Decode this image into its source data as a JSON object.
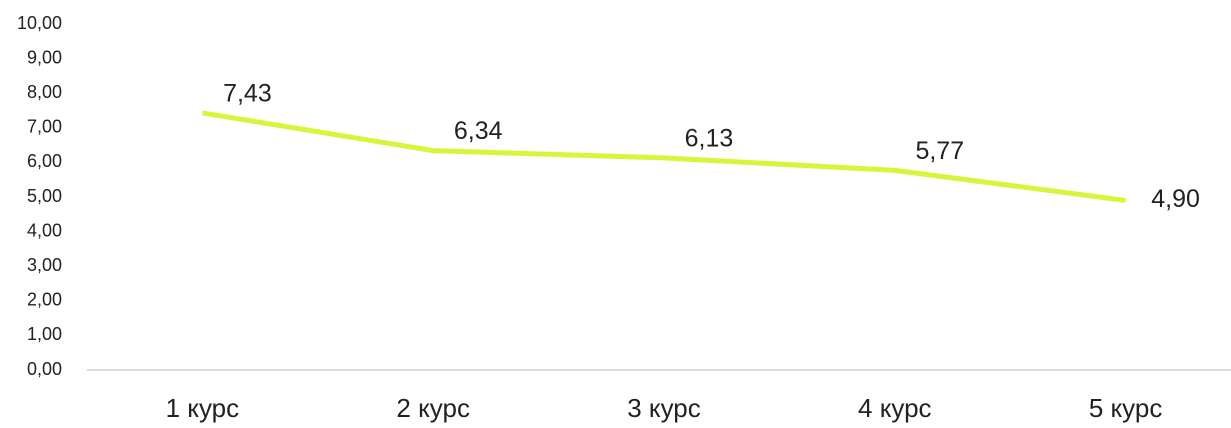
{
  "chart_data": {
    "type": "line",
    "categories": [
      "1 курс",
      "2 курс",
      "3 курс",
      "4 курс",
      "5 курс"
    ],
    "values": [
      7.43,
      6.34,
      6.13,
      5.77,
      4.9
    ],
    "value_labels": [
      "7,43",
      "6,34",
      "6,13",
      "5,77",
      "4,90"
    ],
    "color": "#d7f53a",
    "ylim": [
      0,
      10
    ],
    "yticks": [
      {
        "value": 0,
        "label": "0,00"
      },
      {
        "value": 1,
        "label": "1,00"
      },
      {
        "value": 2,
        "label": "2,00"
      },
      {
        "value": 3,
        "label": "3,00"
      },
      {
        "value": 4,
        "label": "4,00"
      },
      {
        "value": 5,
        "label": "5,00"
      },
      {
        "value": 6,
        "label": "6,00"
      },
      {
        "value": 7,
        "label": "7,00"
      },
      {
        "value": 8,
        "label": "8,00"
      },
      {
        "value": 9,
        "label": "9,00"
      },
      {
        "value": 10,
        "label": "10,00"
      }
    ],
    "grid": false
  }
}
